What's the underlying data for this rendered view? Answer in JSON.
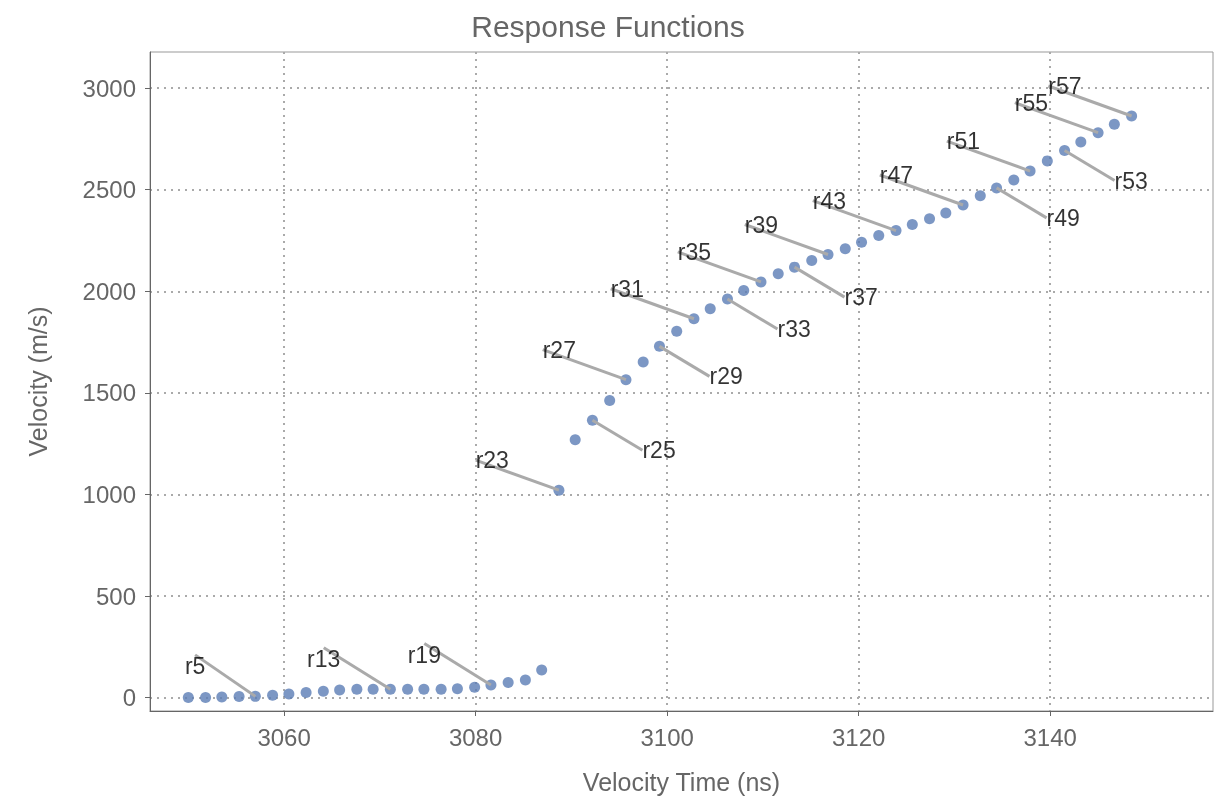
{
  "chart_data": {
    "type": "scatter",
    "title": "Response Functions",
    "xlabel": "Velocity Time (ns)",
    "ylabel": "Velocity (m/s)",
    "x": [
      3050.0,
      3051.8,
      3053.5,
      3055.3,
      3057.0,
      3058.8,
      3060.5,
      3062.3,
      3064.1,
      3065.8,
      3067.6,
      3069.3,
      3071.1,
      3072.9,
      3074.6,
      3076.4,
      3078.1,
      3079.9,
      3081.6,
      3083.4,
      3085.2,
      3086.9,
      3088.7,
      3090.4,
      3092.2,
      3094.0,
      3095.7,
      3097.5,
      3099.2,
      3101.0,
      3102.8,
      3104.5,
      3106.3,
      3108.0,
      3109.8,
      3111.6,
      3113.3,
      3115.1,
      3116.8,
      3118.6,
      3120.3,
      3122.1,
      3123.9,
      3125.6,
      3127.4,
      3129.1,
      3130.9,
      3132.7,
      3134.4,
      3136.2,
      3137.9,
      3139.7,
      3141.5,
      3143.2,
      3145.0,
      3146.7,
      3148.5
    ],
    "series": [
      {
        "color": "#5b7db5",
        "values": [
          0,
          0,
          3,
          5,
          6,
          11,
          18,
          25,
          31,
          37,
          41,
          41,
          41,
          41,
          41,
          41,
          44,
          51,
          62,
          74,
          87,
          136,
          1021,
          1269,
          1365,
          1463,
          1565,
          1652,
          1729,
          1803,
          1865,
          1914,
          1962,
          2004,
          2046,
          2086,
          2119,
          2152,
          2181,
          2209,
          2242,
          2275,
          2299,
          2329,
          2357,
          2386,
          2425,
          2470,
          2509,
          2548,
          2592,
          2642,
          2693,
          2735,
          2781,
          2822,
          2863
        ]
      }
    ],
    "xlim": [
      3046,
      3157
    ],
    "xticks": [
      3060,
      3080,
      3100,
      3120,
      3140
    ],
    "ylim": [
      -66,
      3178
    ],
    "yticks": [
      0,
      500,
      1000,
      1500,
      2000,
      2500,
      3000
    ],
    "grid": true,
    "marker": "circle",
    "annotations": [
      {
        "text": "r5",
        "x": 3057.0,
        "y": 6
      },
      {
        "text": "r13",
        "x": 3071.1,
        "y": 41
      },
      {
        "text": "r19",
        "x": 3081.6,
        "y": 62
      },
      {
        "text": "r23",
        "x": 3088.7,
        "y": 1021
      },
      {
        "text": "r25",
        "x": 3092.2,
        "y": 1365
      },
      {
        "text": "r27",
        "x": 3095.7,
        "y": 1565
      },
      {
        "text": "r29",
        "x": 3099.2,
        "y": 1729
      },
      {
        "text": "r31",
        "x": 3102.8,
        "y": 1865
      },
      {
        "text": "r33",
        "x": 3106.3,
        "y": 1962
      },
      {
        "text": "r35",
        "x": 3109.8,
        "y": 2046
      },
      {
        "text": "r37",
        "x": 3113.3,
        "y": 2119
      },
      {
        "text": "r39",
        "x": 3116.8,
        "y": 2181
      },
      {
        "text": "r43",
        "x": 3123.9,
        "y": 2299
      },
      {
        "text": "r47",
        "x": 3130.9,
        "y": 2425
      },
      {
        "text": "r49",
        "x": 3134.4,
        "y": 2509
      },
      {
        "text": "r51",
        "x": 3137.9,
        "y": 2592
      },
      {
        "text": "r53",
        "x": 3141.5,
        "y": 2693
      },
      {
        "text": "r55",
        "x": 3145.0,
        "y": 2781
      },
      {
        "text": "r57",
        "x": 3148.5,
        "y": 2863
      }
    ]
  }
}
